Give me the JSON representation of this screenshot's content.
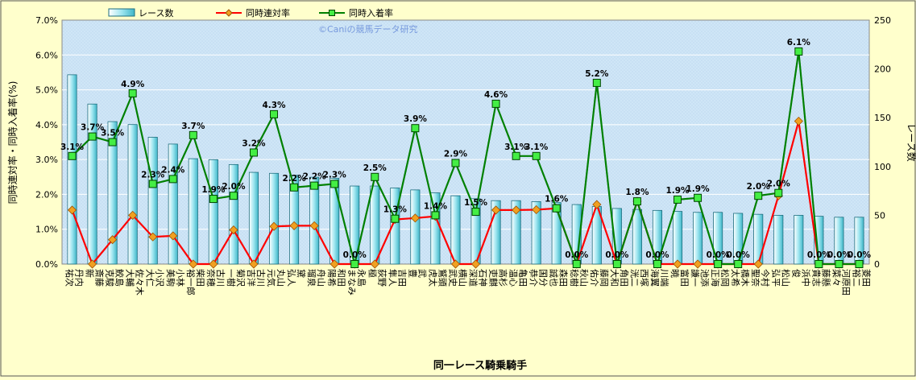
{
  "chart_data": {
    "type": "bar+line",
    "title": "",
    "watermark": "©Caniの競馬データ研究",
    "xlabel": "同一レース騎乗騎手",
    "ylabel_left": "同時連対率・同時入着率(%)",
    "ylabel_right": "レース数",
    "ylim_left": [
      0,
      7
    ],
    "ylim_right": [
      0,
      250
    ],
    "yticks_left": [
      "0.0%",
      "1.0%",
      "2.0%",
      "3.0%",
      "4.0%",
      "5.0%",
      "6.0%",
      "7.0%"
    ],
    "yticks_right": [
      "0",
      "50",
      "100",
      "150",
      "200",
      "250"
    ],
    "legend": [
      "レース数",
      "同時連対率",
      "同時入着率"
    ],
    "legend_position": "top",
    "grid": true,
    "categories": [
      "丹内 祐次",
      "斎藤 新",
      "鮫島 克駿",
      "佐々木 大輔",
      "小沢 大仁",
      "小林 美駒",
      "柴田 裕一郎",
      "古川 奈穂",
      "菊沢 一樹",
      "古川 吉洋",
      "丸山 元気",
      "黛 弘人",
      "舟山 瑠泉",
      "和田 陽希",
      "永島 まなみ",
      "荻野 極",
      "吉田 隼人",
      "武 豊",
      "鷲頭 虎太",
      "横山 武史",
      "石神 深道",
      "高杉 吏麒",
      "亀田 温心",
      "国分 恭介",
      "森田 誠也",
      "秋山 稔樹",
      "藤岡 佑介",
      "角田 大和",
      "西塚 洸二",
      "川端 海翼",
      "富田 暁",
      "池添 謙一",
      "松岡 正海",
      "橋木 太希",
      "今村 聖奈",
      "松山 弘平",
      "浜中 俊",
      "藤懸 貴志",
      "河原田 菜々",
      "菱田 裕二"
    ],
    "series": [
      {
        "name": "レース数",
        "type": "bar",
        "axis": "right",
        "values": [
          194,
          164,
          146,
          143,
          130,
          123,
          108,
          107,
          102,
          94,
          93,
          91,
          89,
          88,
          80,
          80,
          78,
          76,
          73,
          70,
          67,
          65,
          65,
          64,
          63,
          61,
          59,
          57,
          56,
          55,
          54,
          53,
          53,
          52,
          51,
          50,
          50,
          49,
          48,
          48
        ]
      },
      {
        "name": "同時連対率",
        "type": "line",
        "axis": "left",
        "color": "#ff0000",
        "marker": "diamond",
        "values": [
          1.55,
          0,
          0.7,
          1.4,
          0.78,
          0.81,
          0,
          0,
          0.98,
          0,
          1.08,
          1.1,
          1.1,
          0,
          0,
          0,
          1.28,
          1.32,
          1.37,
          0,
          0,
          1.55,
          1.55,
          1.56,
          1.6,
          0,
          1.71,
          0,
          1.8,
          0,
          0,
          0,
          0,
          0,
          0,
          1.96,
          4.1,
          0,
          0,
          0
        ]
      },
      {
        "name": "同時入着率",
        "type": "line",
        "axis": "left",
        "color": "#008000",
        "marker": "square",
        "values": [
          3.1,
          3.66,
          3.5,
          4.9,
          2.3,
          2.44,
          3.7,
          1.87,
          1.96,
          3.2,
          4.3,
          2.2,
          2.25,
          2.3,
          0,
          2.5,
          1.3,
          3.9,
          1.4,
          2.9,
          1.5,
          4.6,
          3.1,
          3.1,
          1.6,
          0,
          5.2,
          0,
          1.8,
          0,
          1.85,
          1.9,
          0,
          0,
          1.96,
          2.04,
          6.1,
          0,
          0,
          0
        ]
      }
    ],
    "data_labels": [
      "3.1%",
      "3.7%",
      "3.5%",
      "4.9%",
      "2.3%",
      "2.4%",
      "3.7%",
      "1.9%",
      "2.0%",
      "3.2%",
      "4.3%",
      "2.2%",
      "2.2%",
      "2.3%",
      "0.0%",
      "2.5%",
      "1.3%",
      "3.9%",
      "1.4%",
      "2.9%",
      "1.5%",
      "4.6%",
      "3.1%",
      "3.1%",
      "1.6%",
      "0.0%",
      "5.2%",
      "0.0%",
      "1.8%",
      "0.0%",
      "1.9%",
      "1.9%",
      "0.0%",
      "0.0%",
      "2.0%",
      "2.0%",
      "6.1%",
      "0.0%",
      "0.0%",
      "0.0%"
    ]
  }
}
